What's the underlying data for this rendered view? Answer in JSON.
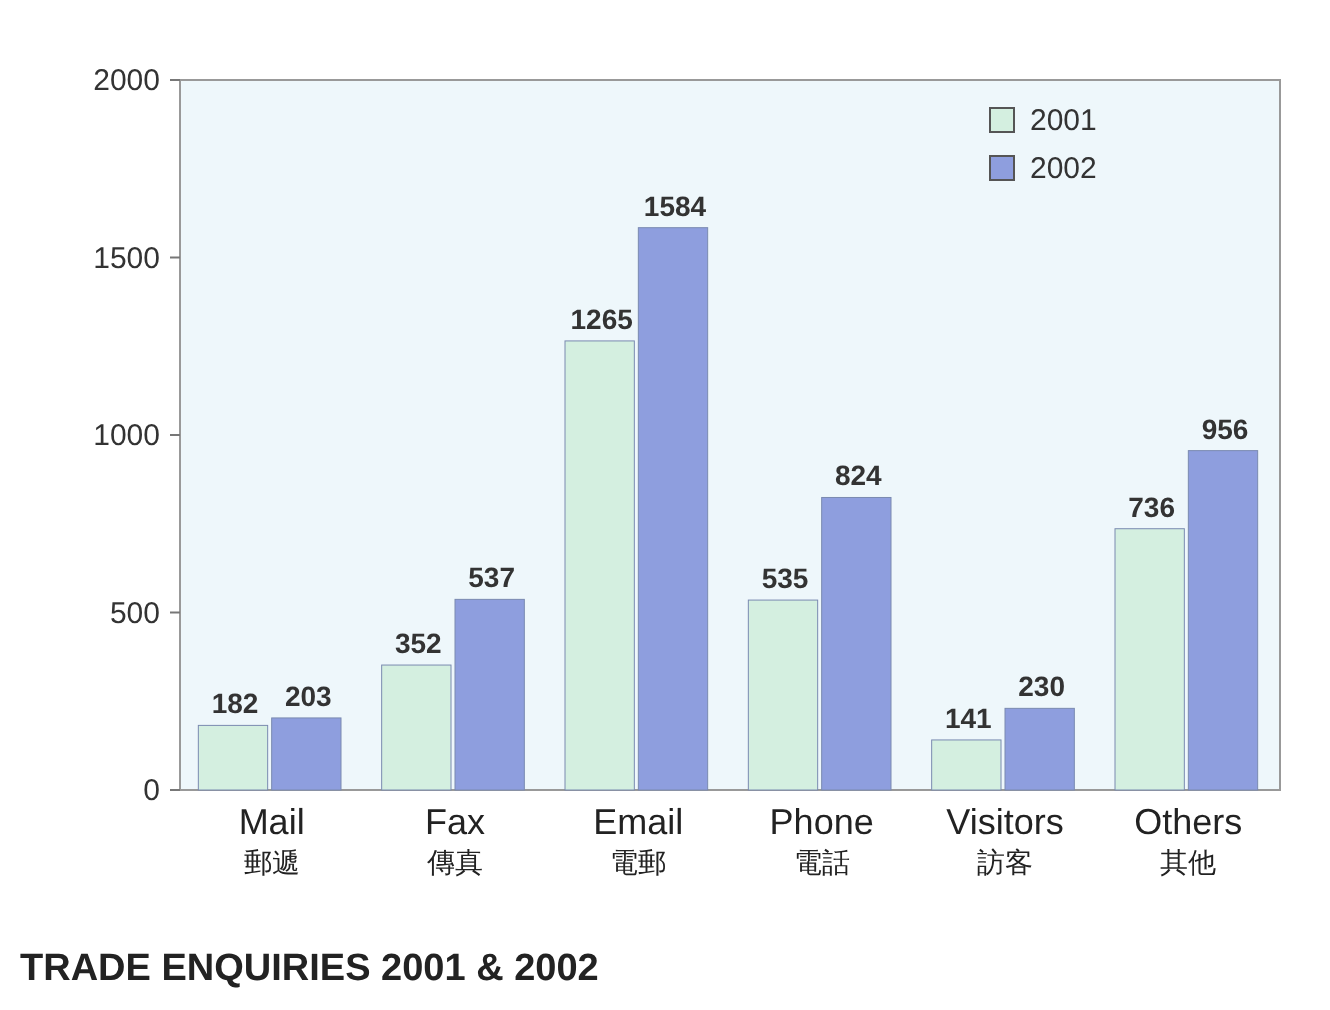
{
  "chart_data": {
    "type": "bar",
    "title": "TRADE ENQUIRIES 2001 & 2002",
    "categories": [
      "Mail\n郵遞",
      "Fax\n傳真",
      "Email\n電郵",
      "Phone\n電話",
      "Visitors\n訪客",
      "Others\n其他"
    ],
    "series": [
      {
        "name": "2001",
        "color": "#d4efe0",
        "values": [
          182,
          352,
          1265,
          535,
          141,
          736
        ]
      },
      {
        "name": "2002",
        "color": "#8e9ede",
        "values": [
          203,
          537,
          1584,
          824,
          230,
          956
        ]
      }
    ],
    "ylim": [
      0,
      2000
    ],
    "yticks": [
      0,
      500,
      1000,
      1500,
      2000
    ],
    "grid": false,
    "legend": "top right",
    "data_labels": true
  }
}
